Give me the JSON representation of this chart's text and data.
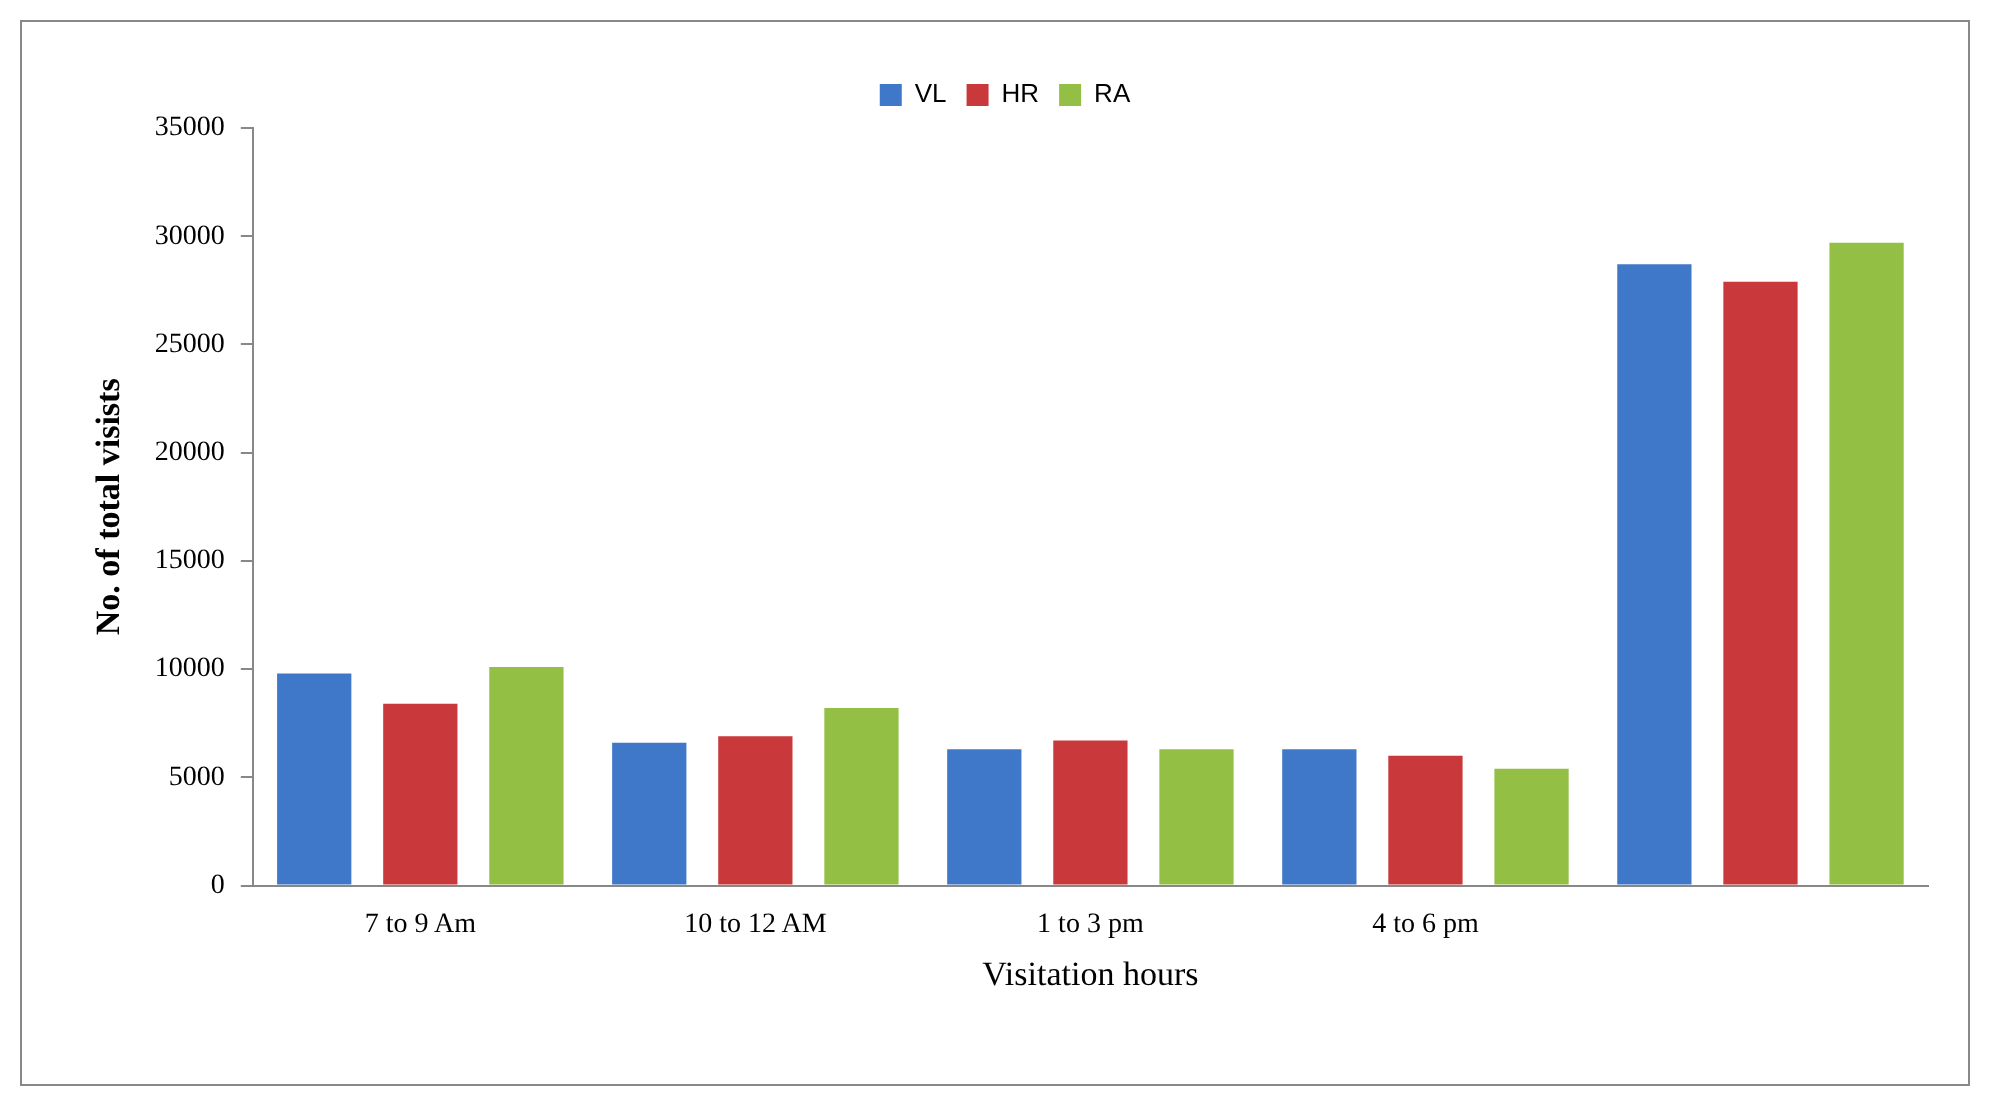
{
  "chart_data": {
    "type": "bar",
    "xlabel": "Visitation hours",
    "ylabel": "No. of total visists",
    "categories": [
      "7 to 9 Am",
      "10 to 12 AM",
      "1 to 3 pm",
      "4 to 6 pm",
      null
    ],
    "series": [
      {
        "name": "VL",
        "color": "#3f78c8",
        "values": [
          9800,
          6600,
          6300,
          6300,
          28700
        ]
      },
      {
        "name": "HR",
        "color": "#c9383a",
        "values": [
          8400,
          6900,
          6700,
          6000,
          27900
        ]
      },
      {
        "name": "RA",
        "color": "#93bf44",
        "values": [
          10100,
          8200,
          6300,
          5400,
          29700
        ]
      }
    ],
    "ylim": [
      0,
      35000
    ],
    "yticks": [
      0,
      5000,
      10000,
      15000,
      20000,
      25000,
      30000,
      35000
    ],
    "grid": false,
    "legend": "top"
  }
}
